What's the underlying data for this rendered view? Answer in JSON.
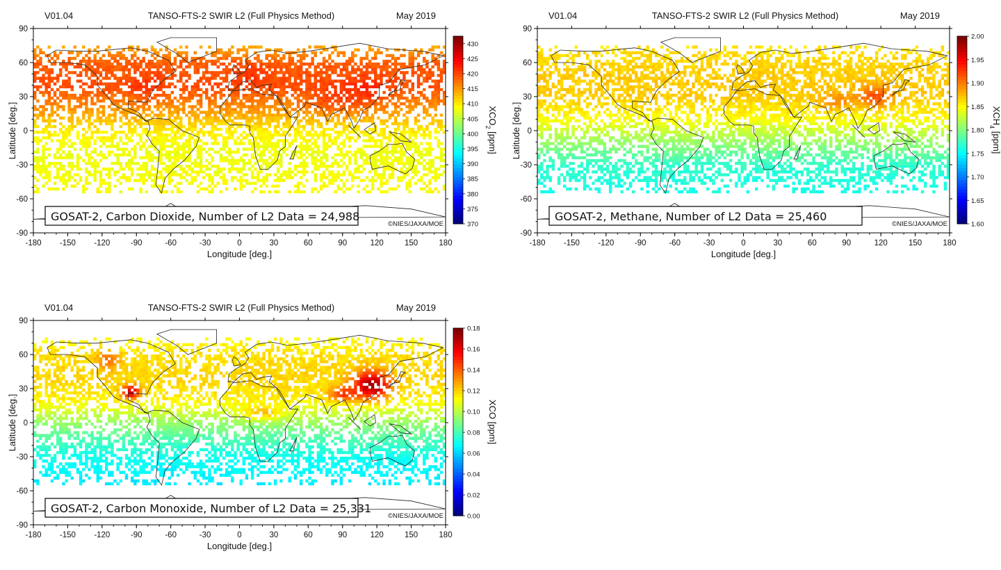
{
  "panels": [
    {
      "id": "co2",
      "version": "V01.04",
      "title": "TANSO-FTS-2 SWIR L2 (Full Physics Method)",
      "date": "May 2019",
      "info_label": "GOSAT-2, Carbon Dioxide, Number of L2 Data = 24,988",
      "copyright": "©NIES/JAXA/MOE",
      "colorbar": {
        "label_main": "XCO",
        "label_sub": "2",
        "label_unit": " [ppm]",
        "ticks": [
          "370",
          "375",
          "380",
          "385",
          "390",
          "395",
          "400",
          "405",
          "410",
          "415",
          "420",
          "425",
          "430"
        ],
        "min": 370,
        "max": 432.5
      },
      "field": {
        "gradient": [
          [
            -50,
            409
          ],
          [
            -20,
            408
          ],
          [
            0,
            410
          ],
          [
            20,
            416
          ],
          [
            40,
            420
          ],
          [
            60,
            419
          ],
          [
            75,
            414
          ]
        ],
        "hotspots": [
          [
            110,
            32,
            18,
            15,
            3
          ],
          [
            80,
            25,
            20,
            12,
            3
          ],
          [
            10,
            50,
            15,
            10,
            2
          ],
          [
            -80,
            38,
            15,
            12,
            2
          ]
        ]
      }
    },
    {
      "id": "ch4",
      "version": "V01.04",
      "title": "TANSO-FTS-2 SWIR L2 (Full Physics Method)",
      "date": "May 2019",
      "info_label": "GOSAT-2, Methane, Number of L2 Data = 25,460",
      "copyright": "©NIES/JAXA/MOE",
      "colorbar": {
        "label_main": "XCH",
        "label_sub": "4",
        "label_unit": " [ppm]",
        "ticks": [
          "1.60",
          "1.65",
          "1.70",
          "1.75",
          "1.80",
          "1.85",
          "1.90",
          "1.95",
          "2.00"
        ],
        "min": 1.6,
        "max": 2.0
      },
      "field": {
        "gradient": [
          [
            -50,
            1.76
          ],
          [
            -30,
            1.77
          ],
          [
            -10,
            1.81
          ],
          [
            10,
            1.85
          ],
          [
            30,
            1.87
          ],
          [
            50,
            1.87
          ],
          [
            75,
            1.86
          ]
        ],
        "hotspots": [
          [
            115,
            30,
            15,
            10,
            0.05
          ],
          [
            80,
            25,
            15,
            8,
            0.03
          ]
        ]
      }
    },
    {
      "id": "co",
      "version": "V01.04",
      "title": "TANSO-FTS-2 SWIR L2 (Full Physics Method)",
      "date": "May 2019",
      "info_label": "GOSAT-2, Carbon Monoxide, Number of L2 Data = 25,331",
      "copyright": "©NIES/JAXA/MOE",
      "colorbar": {
        "label_main": "XCO",
        "label_sub": "",
        "label_unit": " [ppm]",
        "ticks": [
          "0.00",
          "0.02",
          "0.04",
          "0.06",
          "0.08",
          "0.10",
          "0.12",
          "0.14",
          "0.16",
          "0.18"
        ],
        "min": 0.0,
        "max": 0.18
      },
      "field": {
        "gradient": [
          [
            -50,
            0.065
          ],
          [
            -30,
            0.07
          ],
          [
            -10,
            0.085
          ],
          [
            5,
            0.1
          ],
          [
            20,
            0.115
          ],
          [
            40,
            0.12
          ],
          [
            60,
            0.118
          ],
          [
            75,
            0.112
          ]
        ],
        "hotspots": [
          [
            115,
            33,
            16,
            12,
            0.055
          ],
          [
            90,
            25,
            12,
            6,
            0.03
          ],
          [
            -95,
            27,
            8,
            6,
            0.05
          ],
          [
            -115,
            55,
            10,
            8,
            0.02
          ],
          [
            20,
            8,
            18,
            6,
            0.02
          ]
        ]
      }
    }
  ],
  "axes": {
    "xlabel": "Longitude [deg.]",
    "ylabel": "Latitude [deg.]",
    "xticks": [
      "-180",
      "-150",
      "-120",
      "-90",
      "-60",
      "-30",
      "0",
      "30",
      "60",
      "90",
      "120",
      "150",
      "180"
    ],
    "yticks": [
      "90",
      "60",
      "30",
      "0",
      "-30",
      "-60",
      "-90"
    ]
  }
}
